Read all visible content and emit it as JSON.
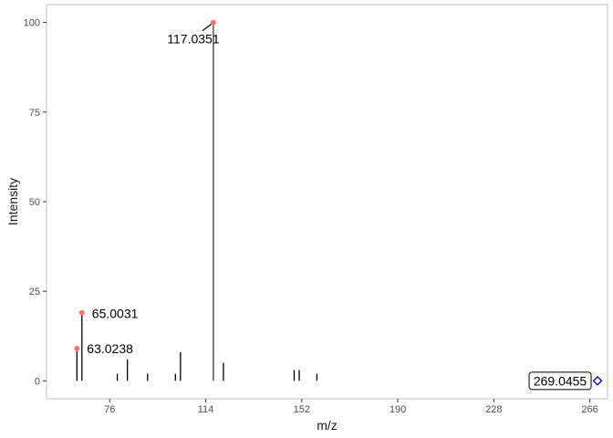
{
  "chart_data": {
    "type": "spectrum",
    "xlabel": "m/z",
    "ylabel": "Intensity",
    "xlim": [
      51,
      273
    ],
    "ylim": [
      -5,
      105
    ],
    "x_ticks": [
      76,
      114,
      152,
      190,
      228,
      266
    ],
    "y_ticks": [
      0,
      25,
      50,
      75,
      100
    ],
    "grid": false,
    "peaks": [
      {
        "mz": 63.0238,
        "intensity": 9
      },
      {
        "mz": 65.0031,
        "intensity": 19
      },
      {
        "mz": 79.0,
        "intensity": 2
      },
      {
        "mz": 83.0,
        "intensity": 6
      },
      {
        "mz": 91.0,
        "intensity": 2
      },
      {
        "mz": 102.0,
        "intensity": 2
      },
      {
        "mz": 104.0,
        "intensity": 8
      },
      {
        "mz": 117.0351,
        "intensity": 100
      },
      {
        "mz": 121.0,
        "intensity": 5
      },
      {
        "mz": 149.0,
        "intensity": 3
      },
      {
        "mz": 151.0,
        "intensity": 3
      },
      {
        "mz": 158.0,
        "intensity": 2
      }
    ],
    "highlighted": [
      {
        "mz": 63.0238,
        "intensity": 9,
        "label": "63.0238"
      },
      {
        "mz": 65.0031,
        "intensity": 19,
        "label": "65.0031"
      },
      {
        "mz": 117.0351,
        "intensity": 100,
        "label": "117.0351"
      }
    ],
    "precursor": {
      "mz": 269.0455,
      "intensity": 0,
      "label": "269.0455"
    },
    "colors": {
      "highlight": "#f8766d",
      "precursor": "#0000cd",
      "peak": "#000000",
      "frame": "#c0c0c0"
    }
  }
}
